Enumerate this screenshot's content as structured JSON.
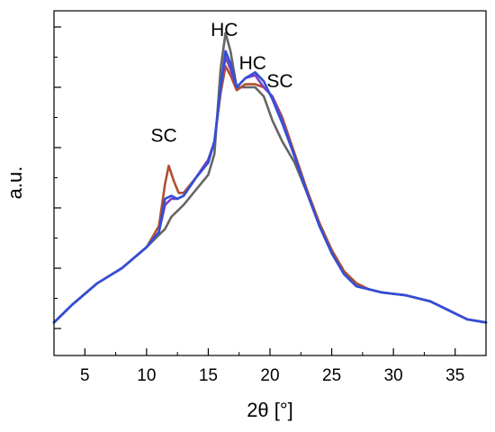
{
  "chart_data": {
    "type": "line",
    "xlabel": "2θ [°]",
    "ylabel": "a.u.",
    "xlim": [
      2.5,
      37.5
    ],
    "ylim": [
      0,
      1
    ],
    "x_ticks": [
      5,
      10,
      15,
      20,
      25,
      30,
      35
    ],
    "x_tick_labels": [
      "5",
      "10",
      "15",
      "20",
      "25",
      "30",
      "35"
    ],
    "grid": false,
    "annotations": [
      {
        "text": "HC",
        "x": 16.3,
        "y": 0.97
      },
      {
        "text": "HC",
        "x": 18.6,
        "y": 0.86
      },
      {
        "text": "SC",
        "x": 20.8,
        "y": 0.8
      },
      {
        "text": "SC",
        "x": 11.4,
        "y": 0.62
      }
    ],
    "series": [
      {
        "color": "#666666",
        "x": [
          2.5,
          4,
          6,
          8,
          10,
          11,
          11.5,
          12,
          13,
          14,
          15,
          15.5,
          16,
          16.4,
          16.8,
          17.3,
          18,
          18.8,
          19.5,
          20.2,
          21,
          22,
          23,
          24,
          25,
          26,
          27,
          28,
          29,
          30,
          31,
          32,
          33,
          34,
          35,
          36,
          37.5
        ],
        "y": [
          0.02,
          0.08,
          0.15,
          0.2,
          0.27,
          0.31,
          0.33,
          0.37,
          0.41,
          0.46,
          0.51,
          0.58,
          0.86,
          0.98,
          0.92,
          0.8,
          0.8,
          0.8,
          0.77,
          0.69,
          0.62,
          0.55,
          0.45,
          0.35,
          0.26,
          0.19,
          0.15,
          0.13,
          0.12,
          0.115,
          0.11,
          0.1,
          0.09,
          0.07,
          0.05,
          0.03,
          0.02
        ]
      },
      {
        "color": "#b05030",
        "x": [
          2.5,
          4,
          6,
          8,
          10,
          11,
          11.5,
          11.8,
          12.2,
          12.6,
          13,
          14,
          15,
          15.5,
          16,
          16.4,
          16.8,
          17.3,
          18,
          18.8,
          19.5,
          20.2,
          21,
          22,
          23,
          24,
          25,
          26,
          27,
          28,
          29,
          30,
          31,
          32,
          33,
          34,
          35,
          36,
          37.5
        ],
        "y": [
          0.02,
          0.08,
          0.15,
          0.2,
          0.27,
          0.34,
          0.48,
          0.54,
          0.49,
          0.45,
          0.45,
          0.5,
          0.56,
          0.62,
          0.78,
          0.87,
          0.84,
          0.79,
          0.81,
          0.81,
          0.8,
          0.77,
          0.7,
          0.58,
          0.46,
          0.35,
          0.26,
          0.19,
          0.15,
          0.13,
          0.12,
          0.115,
          0.11,
          0.1,
          0.09,
          0.07,
          0.05,
          0.03,
          0.02
        ]
      },
      {
        "color": "#8040c0",
        "x": [
          2.5,
          4,
          6,
          8,
          10,
          11,
          11.5,
          12,
          12.5,
          13,
          14,
          15,
          15.5,
          16,
          16.4,
          16.8,
          17.3,
          18,
          18.8,
          19.5,
          20.2,
          21,
          22,
          23,
          24,
          25,
          26,
          27,
          28,
          29,
          30,
          31,
          32,
          33,
          34,
          35,
          36,
          37.5
        ],
        "y": [
          0.02,
          0.08,
          0.15,
          0.2,
          0.27,
          0.32,
          0.41,
          0.43,
          0.43,
          0.44,
          0.5,
          0.56,
          0.62,
          0.8,
          0.9,
          0.86,
          0.8,
          0.83,
          0.84,
          0.8,
          0.77,
          0.69,
          0.57,
          0.45,
          0.34,
          0.25,
          0.18,
          0.14,
          0.13,
          0.12,
          0.115,
          0.11,
          0.1,
          0.09,
          0.07,
          0.05,
          0.03,
          0.02
        ]
      },
      {
        "color": "#3050d8",
        "x": [
          2.5,
          4,
          6,
          8,
          10,
          11,
          11.5,
          12,
          12.5,
          13,
          14,
          15,
          15.5,
          16,
          16.4,
          16.8,
          17.3,
          18,
          18.8,
          19.5,
          20.2,
          21,
          22,
          23,
          24,
          25,
          26,
          27,
          28,
          29,
          30,
          31,
          32,
          33,
          34,
          35,
          36,
          37.5
        ],
        "y": [
          0.02,
          0.08,
          0.15,
          0.2,
          0.27,
          0.32,
          0.43,
          0.44,
          0.43,
          0.44,
          0.5,
          0.55,
          0.62,
          0.8,
          0.92,
          0.88,
          0.8,
          0.83,
          0.85,
          0.82,
          0.76,
          0.68,
          0.57,
          0.45,
          0.34,
          0.25,
          0.18,
          0.14,
          0.13,
          0.12,
          0.115,
          0.11,
          0.1,
          0.09,
          0.07,
          0.05,
          0.03,
          0.02
        ]
      }
    ]
  }
}
